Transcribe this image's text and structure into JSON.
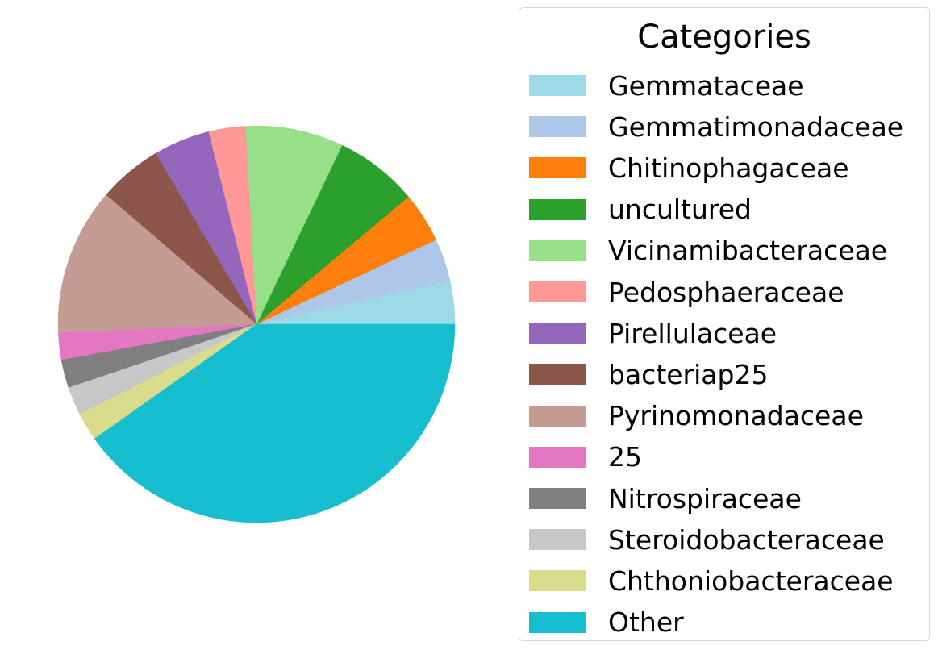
{
  "chart_data": {
    "type": "pie",
    "title": "",
    "start_angle_degrees": 0,
    "direction": "counterclockwise",
    "legend": {
      "title": "Categories",
      "placement": "right"
    },
    "slices": [
      {
        "label": "Gemmataceae",
        "value": 3.5,
        "color": "#9edae5"
      },
      {
        "label": "Gemmatimonadaceae",
        "value": 3.5,
        "color": "#aec7e8"
      },
      {
        "label": "Chitinophagaceae",
        "value": 4.1,
        "color": "#ff7f0e"
      },
      {
        "label": "uncultured",
        "value": 6.8,
        "color": "#2ca02c"
      },
      {
        "label": "Vicinamibacteraceae",
        "value": 8.0,
        "color": "#98df8a"
      },
      {
        "label": "Pedosphaeraceae",
        "value": 3.0,
        "color": "#ff9896"
      },
      {
        "label": "Pirellulaceae",
        "value": 4.6,
        "color": "#9467bd"
      },
      {
        "label": "bacteriap25",
        "value": 5.2,
        "color": "#8c564b"
      },
      {
        "label": "Pyrinomonadaceae",
        "value": 12.0,
        "color": "#c49c94"
      },
      {
        "label": "25",
        "value": 2.2,
        "color": "#e377c2"
      },
      {
        "label": "Nitrospiraceae",
        "value": 2.3,
        "color": "#7f7f7f"
      },
      {
        "label": "Steroidobacteraceae",
        "value": 2.3,
        "color": "#c7c7c7"
      },
      {
        "label": "Chthoniobacteraceae",
        "value": 2.3,
        "color": "#dbdb8d"
      },
      {
        "label": "Other",
        "value": 40.2,
        "color": "#17becf"
      }
    ]
  }
}
